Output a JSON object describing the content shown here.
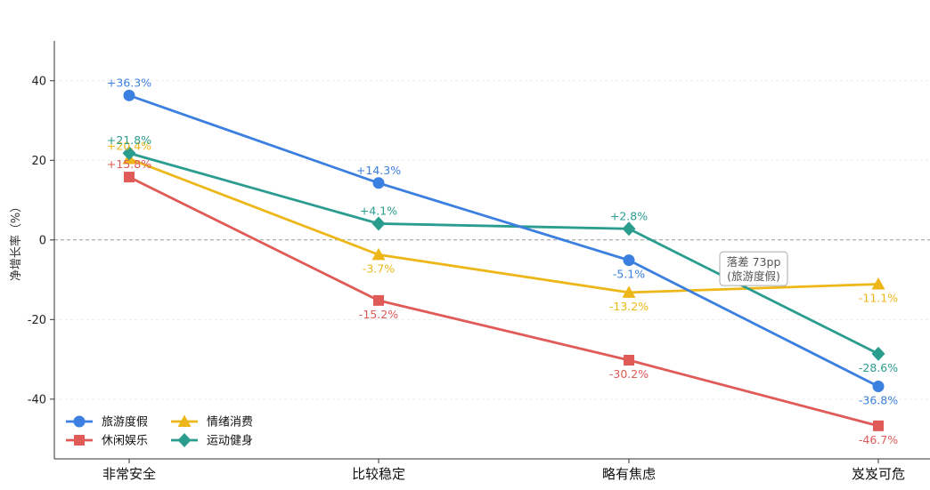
{
  "chart_data": {
    "type": "line",
    "title": "",
    "xlabel": "",
    "ylabel": "净增长率（%）",
    "categories": [
      "非常安全",
      "比较稳定",
      "略有焦虑",
      "岌岌可危"
    ],
    "ylim": [
      -55,
      50
    ],
    "yticks": [
      -40,
      -20,
      0,
      20,
      40
    ],
    "grid": true,
    "zero_line": true,
    "legend_position": "bottom-left",
    "series": [
      {
        "name": "旅游度假",
        "color": "#3b7fe0",
        "marker": "circle",
        "values": [
          36.3,
          14.3,
          -5.1,
          -36.8
        ],
        "labels": [
          "+36.3%",
          "+14.3%",
          "-5.1%",
          "-36.8%"
        ]
      },
      {
        "name": "休闲娱乐",
        "color": "#e05a57",
        "marker": "square",
        "values": [
          15.8,
          -15.2,
          -30.2,
          -46.7
        ],
        "labels": [
          "+15.8%",
          "-15.2%",
          "-30.2%",
          "-46.7%"
        ]
      },
      {
        "name": "情绪消费",
        "color": "#eeb719",
        "marker": "triangle",
        "values": [
          20.4,
          -3.7,
          -13.2,
          -11.1
        ],
        "labels": [
          "+20.4%",
          "-3.7%",
          "-13.2%",
          "-11.1%"
        ]
      },
      {
        "name": "运动健身",
        "color": "#2a9d8f",
        "marker": "diamond",
        "values": [
          21.8,
          4.1,
          2.8,
          -28.6
        ],
        "labels": [
          "+21.8%",
          "+4.1%",
          "+2.8%",
          "-28.6%"
        ]
      }
    ],
    "annotation": {
      "lines": [
        "落差 73pp",
        "(旅游度假)"
      ],
      "x_category": 2.5,
      "y": -7
    }
  }
}
